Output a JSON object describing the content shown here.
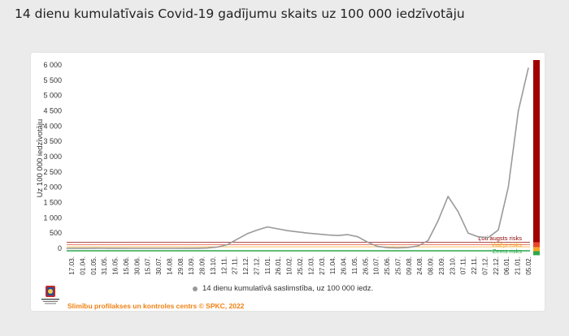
{
  "page": {
    "title": "14 dienu kumulatīvais Covid-19 gadījumu skaits uz 100 000 iedzīvotāju"
  },
  "legend": {
    "series_label": "14 dienu kumulatīvā saslimstība, uz 100 000 iedz."
  },
  "footer": {
    "credit": "Slimību profilakses un kontroles centrs © SPKC, 2022"
  },
  "chart_data": {
    "type": "line",
    "title": "14 dienu kumulatīvais Covid-19 gadījumu skaits uz 100 000 iedzīvotāju",
    "ylabel": "Uz 100 000 iedzīvotāju",
    "xlabel": "",
    "ylim": [
      0,
      6000
    ],
    "yticks": [
      0,
      500,
      1000,
      1500,
      2000,
      2500,
      3000,
      3500,
      4000,
      4500,
      5000,
      5500,
      6000
    ],
    "ytick_labels": [
      "0",
      "500",
      "1 000",
      "1 500",
      "2 000",
      "2 500",
      "3 000",
      "3 500",
      "4 000",
      "4 500",
      "5 000",
      "5 500",
      "6 000"
    ],
    "x": [
      "17.03.",
      "01.04.",
      "16.04.",
      "01.05.",
      "16.05.",
      "31.05.",
      "15.06.",
      "30.06.",
      "15.07.",
      "30.07.",
      "14.08.",
      "29.08.",
      "13.09.",
      "28.09.",
      "13.10.",
      "28.10.",
      "12.11.",
      "27.11.",
      "12.12.",
      "27.12.",
      "11.01.",
      "26.01.",
      "10.02.",
      "25.02.",
      "12.03.",
      "27.03.",
      "11.04.",
      "26.04.",
      "11.05.",
      "26.05.",
      "10.06.",
      "25.06.",
      "10.07.",
      "25.07.",
      "09.08.",
      "24.08.",
      "08.09.",
      "23.09.",
      "08.10.",
      "23.10.",
      "07.11.",
      "22.11.",
      "07.12.",
      "22.12.",
      "06.01.",
      "21.01.",
      "05.02."
    ],
    "x_tick_labels": [
      "17.03.",
      "01.04.",
      "01.05.",
      "31.05.",
      "16.05.",
      "15.06.",
      "30.06.",
      "15.07.",
      "30.07.",
      "14.08.",
      "29.08.",
      "13.09.",
      "28.09.",
      "13.10.",
      "12.11.",
      "27.11.",
      "12.12.",
      "27.12.",
      "11.01.",
      "26.01.",
      "10.02.",
      "25.02.",
      "12.03.",
      "27.03.",
      "11.04.",
      "26.04.",
      "11.05.",
      "26.05.",
      "10.07.",
      "25.06.",
      "25.07.",
      "09.08.",
      "24.08.",
      "08.09.",
      "23.09.",
      "23.10.",
      "07.11.",
      "22.11.",
      "07.12.",
      "22.12.",
      "06.01.",
      "21.01.",
      "05.02."
    ],
    "series": [
      {
        "name": "14 dienu kumulatīvā saslimstība, uz 100 000 iedz.",
        "values": [
          0,
          2,
          3,
          4,
          3,
          2,
          1,
          1,
          1,
          1,
          1,
          1,
          2,
          3,
          10,
          40,
          120,
          300,
          480,
          600,
          700,
          640,
          580,
          540,
          500,
          470,
          440,
          420,
          450,
          380,
          200,
          60,
          20,
          15,
          30,
          80,
          250,
          900,
          1700,
          1200,
          500,
          380,
          350,
          600,
          2000,
          4500,
          5900
        ]
      }
    ],
    "risk_levels": [
      {
        "label": "Ļoti augsts risks",
        "threshold": 200,
        "color": "#8b0000"
      },
      {
        "label": "Augsts risks",
        "threshold": 120,
        "color": "#e8462a"
      },
      {
        "label": "Vidējs risks",
        "threshold": 50,
        "color": "#f5a623"
      },
      {
        "label": "Zems risks",
        "threshold": 0,
        "color": "#2aa84a"
      }
    ],
    "line_color": "#9a9a9a",
    "grid": false,
    "legend_position": "bottom"
  }
}
